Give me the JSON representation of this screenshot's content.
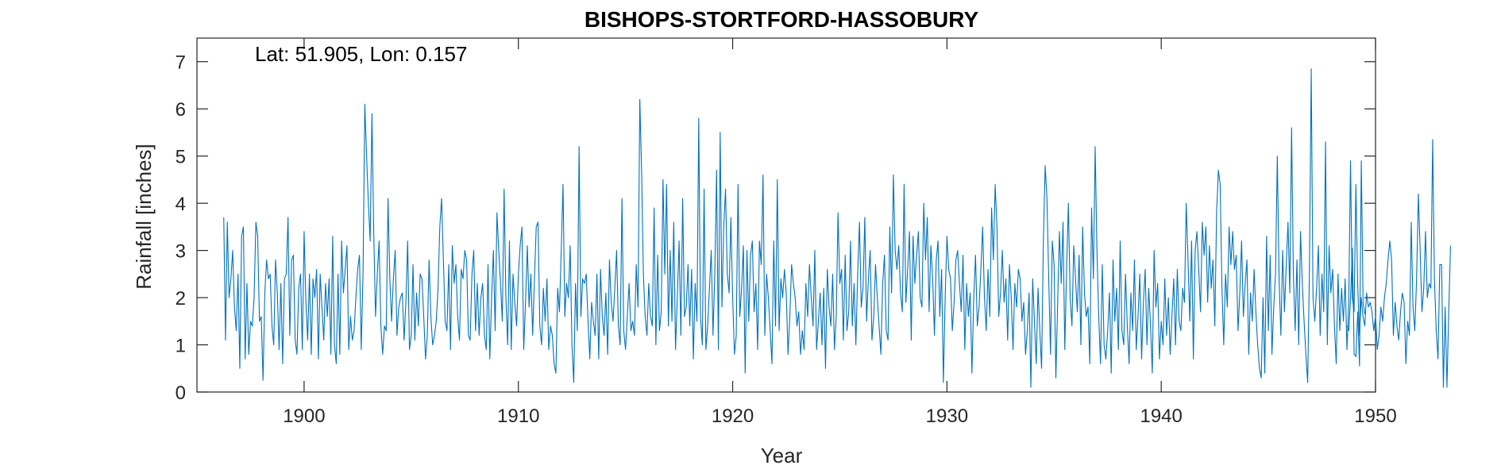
{
  "chart_data": {
    "type": "line",
    "title": "BISHOPS-STORTFORD-HASSOBURY",
    "annotation": "Lat: 51.905, Lon: 0.157",
    "xlabel": "Year",
    "ylabel": "Rainfall [inches]",
    "xlim": [
      1895,
      1950
    ],
    "ylim": [
      0,
      7.5
    ],
    "xticks": [
      1900,
      1910,
      1920,
      1930,
      1940,
      1950
    ],
    "yticks": [
      0,
      1,
      2,
      3,
      4,
      5,
      6,
      7
    ],
    "grid": false,
    "box": true,
    "line_color": "#0072BD",
    "axis_color": "#262626",
    "series": [
      {
        "start": 1896.25,
        "step": 0.0833333,
        "values": [
          3.7,
          1.1,
          3.6,
          2.0,
          2.4,
          3.0,
          1.8,
          1.3,
          2.5,
          0.5,
          3.3,
          3.5,
          0.7,
          2.3,
          0.8,
          1.5,
          1.4,
          2.0,
          3.6,
          3.3,
          1.5,
          1.6,
          0.25,
          2.1,
          2.8,
          2.4,
          2.5,
          1.4,
          1.0,
          2.8,
          2.1,
          0.9,
          2.3,
          0.6,
          2.4,
          2.5,
          3.7,
          1.2,
          2.8,
          2.9,
          1.1,
          0.8,
          2.2,
          2.5,
          0.9,
          3.4,
          1.9,
          1.1,
          2.5,
          0.8,
          2.4,
          2.0,
          2.6,
          0.7,
          2.5,
          1.8,
          1.1,
          2.3,
          1.6,
          2.4,
          0.8,
          3.3,
          1.0,
          0.6,
          2.5,
          0.8,
          3.2,
          2.1,
          2.6,
          3.1,
          0.9,
          1.6,
          1.1,
          1.3,
          2.0,
          2.6,
          2.9,
          0.9,
          2.5,
          6.1,
          5.0,
          4.0,
          3.2,
          5.9,
          3.4,
          1.6,
          2.5,
          3.2,
          1.4,
          0.8,
          1.4,
          1.3,
          4.1,
          2.4,
          1.5,
          2.4,
          3.0,
          1.2,
          1.8,
          2.0,
          2.1,
          1.1,
          1.9,
          3.2,
          0.9,
          1.2,
          2.7,
          1.1,
          2.1,
          1.4,
          2.5,
          2.4,
          1.6,
          0.7,
          1.2,
          2.8,
          1.6,
          1.0,
          1.2,
          1.5,
          2.2,
          3.5,
          4.1,
          2.8,
          1.5,
          1.3,
          2.7,
          0.9,
          3.1,
          2.3,
          2.7,
          1.6,
          1.1,
          2.6,
          2.4,
          3.0,
          2.8,
          1.2,
          1.1,
          2.5,
          3.0,
          1.3,
          2.3,
          1.2,
          2.0,
          2.3,
          1.2,
          0.9,
          2.7,
          0.7,
          2.0,
          3.0,
          1.3,
          3.8,
          3.0,
          2.3,
          1.5,
          4.3,
          2.0,
          1.0,
          3.2,
          0.9,
          2.5,
          1.9,
          1.4,
          2.5,
          3.1,
          3.5,
          0.9,
          1.9,
          3.1,
          1.8,
          2.5,
          1.2,
          2.4,
          3.5,
          3.6,
          1.4,
          1.0,
          2.2,
          1.5,
          2.4,
          0.9,
          1.4,
          1.2,
          0.6,
          0.4,
          2.2,
          1.7,
          3.0,
          4.4,
          1.6,
          2.3,
          2.0,
          3.1,
          1.0,
          0.2,
          2.3,
          1.3,
          5.2,
          1.6,
          2.4,
          2.3,
          2.5,
          1.5,
          0.7,
          1.9,
          1.5,
          1.2,
          2.5,
          0.7,
          2.6,
          1.6,
          1.2,
          2.1,
          0.8,
          2.8,
          1.9,
          1.5,
          2.2,
          3.0,
          1.4,
          1.0,
          4.1,
          1.3,
          0.9,
          1.6,
          2.3,
          1.3,
          1.5,
          1.2,
          2.7,
          1.8,
          6.2,
          4.7,
          2.5,
          1.6,
          1.2,
          2.3,
          1.6,
          1.4,
          3.9,
          1.0,
          2.9,
          1.3,
          1.7,
          4.5,
          2.5,
          4.4,
          1.4,
          3.0,
          1.5,
          3.6,
          0.9,
          2.0,
          3.2,
          1.2,
          4.1,
          1.6,
          1.8,
          2.7,
          1.4,
          2.6,
          0.7,
          2.3,
          1.5,
          5.8,
          1.6,
          1.0,
          4.3,
          0.9,
          1.4,
          2.2,
          3.0,
          1.2,
          2.5,
          4.7,
          0.9,
          5.5,
          1.8,
          3.5,
          4.3,
          2.5,
          2.1,
          3.7,
          2.0,
          0.8,
          1.2,
          4.4,
          1.6,
          2.2,
          3.1,
          0.4,
          3.0,
          1.5,
          2.9,
          3.2,
          1.7,
          2.3,
          0.9,
          3.2,
          2.7,
          4.6,
          1.2,
          2.5,
          2.0,
          1.3,
          0.6,
          3.2,
          1.4,
          4.5,
          1.3,
          2.4,
          2.0,
          2.6,
          2.1,
          0.8,
          1.6,
          2.7,
          2.3,
          2.0,
          1.4,
          1.7,
          0.8,
          1.3,
          0.9,
          2.3,
          1.6,
          2.7,
          2.0,
          1.4,
          3.0,
          0.9,
          1.5,
          2.1,
          1.0,
          2.2,
          0.5,
          2.6,
          1.8,
          1.4,
          2.5,
          0.9,
          1.6,
          3.8,
          2.3,
          2.6,
          1.1,
          2.9,
          1.3,
          1.7,
          3.2,
          1.4,
          2.3,
          1.0,
          2.5,
          3.6,
          1.8,
          2.2,
          3.7,
          1.5,
          2.4,
          3.0,
          1.1,
          1.6,
          2.7,
          2.0,
          1.4,
          0.8,
          2.3,
          2.9,
          1.3,
          1.1,
          3.5,
          2.1,
          4.6,
          3.0,
          2.6,
          3.1,
          2.1,
          1.7,
          4.4,
          1.9,
          2.6,
          3.4,
          1.1,
          3.3,
          2.3,
          2.9,
          3.4,
          2.0,
          1.8,
          4.0,
          2.8,
          3.7,
          1.7,
          3.1,
          2.4,
          1.2,
          2.8,
          3.2,
          1.6,
          2.6,
          0.2,
          2.0,
          3.3,
          2.6,
          2.4,
          1.3,
          1.9,
          2.8,
          3.0,
          2.3,
          1.7,
          2.9,
          0.9,
          2.3,
          1.6,
          2.1,
          0.4,
          2.0,
          2.9,
          1.4,
          1.8,
          2.6,
          3.5,
          2.0,
          1.3,
          2.6,
          1.6,
          3.9,
          2.8,
          4.4,
          3.5,
          1.6,
          2.1,
          3.0,
          1.9,
          2.4,
          1.1,
          2.7,
          2.0,
          0.9,
          2.3,
          1.8,
          2.6,
          2.4,
          1.5,
          1.9,
          0.8,
          1.3,
          2.1,
          0.1,
          2.4,
          1.5,
          0.6,
          2.2,
          1.3,
          0.5,
          3.2,
          4.8,
          4.1,
          2.4,
          0.8,
          3.2,
          2.7,
          0.3,
          1.9,
          3.4,
          2.3,
          3.6,
          0.9,
          2.6,
          4.0,
          2.0,
          1.4,
          3.1,
          2.4,
          1.7,
          2.9,
          1.0,
          3.5,
          2.1,
          1.6,
          1.8,
          0.6,
          3.9,
          2.4,
          5.2,
          3.0,
          1.6,
          0.6,
          2.7,
          1.0,
          0.7,
          1.3,
          2.1,
          0.4,
          2.8,
          1.5,
          2.2,
          0.9,
          3.2,
          1.3,
          1.0,
          2.5,
          1.4,
          0.6,
          2.1,
          1.3,
          2.8,
          0.9,
          1.6,
          2.5,
          0.7,
          1.9,
          2.6,
          1.0,
          2.2,
          1.4,
          0.4,
          3.0,
          1.8,
          2.3,
          0.7,
          1.5,
          1.0,
          2.4,
          1.2,
          2.0,
          0.8,
          1.6,
          2.4,
          1.0,
          2.6,
          1.5,
          1.3,
          2.2,
          1.9,
          4.0,
          2.8,
          1.5,
          3.2,
          0.7,
          3.0,
          3.4,
          2.6,
          1.7,
          3.6,
          2.9,
          3.5,
          1.9,
          3.1,
          2.2,
          2.8,
          1.4,
          3.8,
          4.7,
          4.4,
          2.2,
          1.0,
          2.5,
          1.8,
          3.5,
          2.7,
          3.4,
          2.6,
          2.9,
          1.3,
          2.1,
          3.2,
          1.6,
          2.3,
          2.8,
          0.8,
          2.1,
          1.5,
          2.6,
          1.7,
          1.0,
          0.5,
          0.3,
          2.0,
          0.4,
          3.3,
          1.3,
          2.9,
          0.8,
          1.8,
          2.5,
          5.0,
          2.4,
          1.2,
          3.0,
          1.7,
          2.7,
          3.6,
          2.1,
          5.6,
          2.5,
          1.3,
          2.8,
          1.0,
          3.4,
          2.3,
          1.5,
          0.8,
          0.2,
          2.6,
          6.85,
          2.0,
          1.5,
          2.2,
          3.1,
          1.2,
          2.5,
          1.7,
          5.3,
          1.0,
          3.1,
          2.1,
          2.6,
          1.4,
          0.6,
          2.5,
          1.3,
          2.2,
          1.5,
          2.4,
          0.9,
          1.9,
          4.9,
          2.0,
          1.7,
          4.4,
          2.3,
          1.2,
          2.0,
          1.6,
          1.4,
          2.1,
          1.8,
          1.9,
          1.7,
          1.3,
          1.6,
          0.9,
          1.2,
          1.8,
          1.5,
          2.0,
          2.3,
          2.8,
          3.2,
          2.8,
          1.2,
          1.9,
          1.4,
          1.1,
          1.7,
          2.1,
          1.9,
          0.6,
          1.5,
          1.2,
          3.6,
          1.8,
          1.3,
          2.4,
          4.2,
          3.0,
          1.7,
          2.2,
          3.4,
          2.0,
          2.3,
          2.2,
          5.35,
          2.4,
          1.3,
          0.7,
          2.7,
          2.7,
          0.1,
          1.8,
          0.1,
          1.7,
          3.1
        ],
        "gap_note": ""
      },
      {
        "start": 1948.67,
        "step": 0.0833333,
        "values": [
          1.4,
          1.3,
          2.0,
          3.05,
          0.8,
          0.75,
          1.7,
          0.55,
          4.9,
          1.9,
          1.65
        ]
      }
    ]
  }
}
